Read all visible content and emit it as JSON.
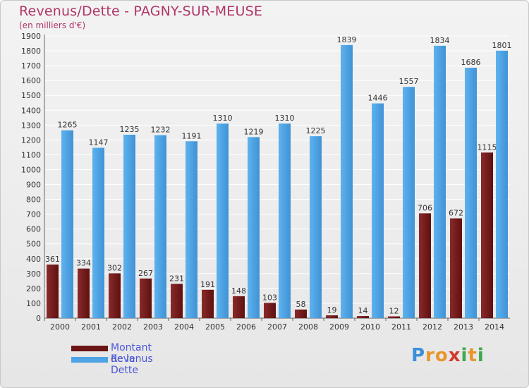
{
  "header": {
    "title": "Revenus/Dette - PAGNY-SUR-MEUSE",
    "subtitle": "(en milliers d'€)"
  },
  "chart_data": {
    "type": "bar",
    "categories": [
      "2000",
      "2001",
      "2002",
      "2003",
      "2004",
      "2005",
      "2006",
      "2007",
      "2008",
      "2009",
      "2010",
      "2011",
      "2012",
      "2013",
      "2014"
    ],
    "series": [
      {
        "name": "Montant de la Dette",
        "color": "#7a1c1c",
        "values": [
          361,
          334,
          302,
          267,
          231,
          191,
          148,
          103,
          58,
          19,
          14,
          12,
          706,
          672,
          1115
        ],
        "labels": [
          "361",
          "334",
          "302",
          "267",
          "231",
          "191",
          "148",
          "103",
          "58",
          "19",
          "14",
          "12",
          "706",
          "672",
          "1115"
        ]
      },
      {
        "name": "Revenus",
        "color": "#4da3e6",
        "values": [
          1265,
          1147,
          1235,
          1232,
          1191,
          1310,
          1219,
          1310,
          1225,
          1839,
          1446,
          1557,
          1834,
          1686,
          1801
        ],
        "labels": [
          "1265",
          "1147",
          "1235",
          "1232",
          "1191",
          "1310",
          "1219",
          "1310",
          "1225",
          "1839",
          "1446",
          "1557",
          "1834",
          "1686",
          "1801"
        ]
      }
    ],
    "yticks": [
      0,
      100,
      200,
      300,
      400,
      500,
      600,
      700,
      800,
      900,
      1000,
      1100,
      1200,
      1300,
      1400,
      1500,
      1600,
      1700,
      1800,
      1900
    ],
    "ylim": [
      0,
      1900
    ],
    "grid": true,
    "legend_position": "bottom-left"
  },
  "legend": {
    "items": [
      {
        "label": "Montant de la Dette",
        "color": "#6b1414"
      },
      {
        "label": "Revenus",
        "color": "#4da3e6"
      }
    ]
  },
  "logo": {
    "letters": [
      "P",
      "r",
      "o",
      "x",
      "i",
      "t",
      "i"
    ],
    "colors": [
      "#3b8fd8",
      "#e8962a",
      "#e8962a",
      "#d23a2a",
      "#3ca84a",
      "#e8962a",
      "#3ca84a"
    ]
  }
}
